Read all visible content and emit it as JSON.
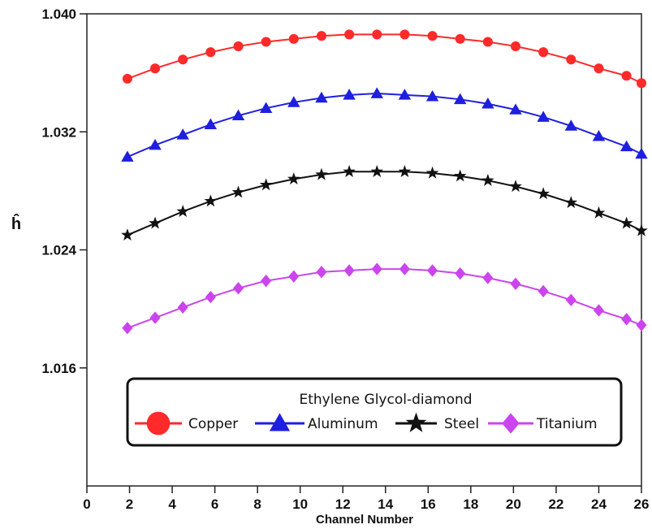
{
  "chart_data": {
    "type": "line",
    "xlabel": "Channel Number",
    "ylabel": "ĥ",
    "xlim": [
      0,
      26
    ],
    "ylim": [
      1.008,
      1.04
    ],
    "x_ticks": [
      0,
      2,
      4,
      6,
      8,
      10,
      12,
      14,
      16,
      18,
      20,
      22,
      24,
      26
    ],
    "y_ticks": [
      1.016,
      1.024,
      1.032,
      1.04
    ],
    "y_tick_labels": [
      "1.016",
      "1.024",
      "1.032",
      "1.040"
    ],
    "grid": false,
    "legend": {
      "title": "Ethylene Glycol-diamond",
      "placement": "bottom-center"
    },
    "x": [
      1.9,
      3.2,
      4.5,
      5.8,
      7.1,
      8.4,
      9.7,
      11.0,
      12.3,
      13.6,
      14.9,
      16.2,
      17.5,
      18.8,
      20.1,
      21.4,
      22.7,
      24.0,
      25.3,
      26.0
    ],
    "series": [
      {
        "name": "Copper",
        "color": "#ff2a2a",
        "marker": "circle",
        "values": [
          1.0356,
          1.0363,
          1.0369,
          1.0374,
          1.0378,
          1.0381,
          1.0383,
          1.0385,
          1.0386,
          1.0386,
          1.0386,
          1.0385,
          1.0383,
          1.0381,
          1.0378,
          1.0374,
          1.0369,
          1.0363,
          1.0358,
          1.0353
        ]
      },
      {
        "name": "Aluminum",
        "color": "#1f1fe0",
        "marker": "triangle",
        "values": [
          1.0303,
          1.0311,
          1.0318,
          1.0325,
          1.0331,
          1.0336,
          1.034,
          1.0343,
          1.0345,
          1.0346,
          1.0345,
          1.0344,
          1.0342,
          1.0339,
          1.0335,
          1.033,
          1.0324,
          1.0317,
          1.031,
          1.0305
        ]
      },
      {
        "name": "Steel",
        "color": "#111111",
        "marker": "star",
        "values": [
          1.025,
          1.0258,
          1.0266,
          1.0273,
          1.0279,
          1.0284,
          1.0288,
          1.0291,
          1.0293,
          1.0293,
          1.0293,
          1.0292,
          1.029,
          1.0287,
          1.0283,
          1.0278,
          1.0272,
          1.0265,
          1.0258,
          1.0253
        ]
      },
      {
        "name": "Titanium",
        "color": "#cc44ee",
        "marker": "diamond",
        "values": [
          1.0187,
          1.0194,
          1.0201,
          1.0208,
          1.0214,
          1.0219,
          1.0222,
          1.0225,
          1.0226,
          1.0227,
          1.0227,
          1.0226,
          1.0224,
          1.0221,
          1.0217,
          1.0212,
          1.0206,
          1.0199,
          1.0193,
          1.0189
        ]
      }
    ]
  }
}
